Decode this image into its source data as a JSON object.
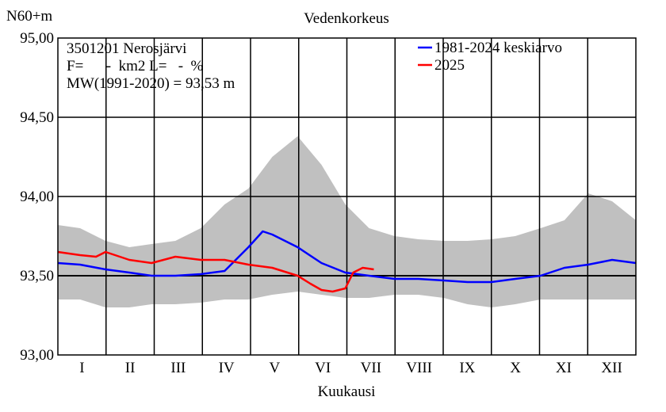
{
  "chart_data": {
    "type": "line",
    "title": "Vedenkorkeus",
    "ylabel": "N60+m",
    "xlabel": "Kuukausi",
    "ylim": [
      93.0,
      95.0
    ],
    "yticks": [
      "93,00",
      "93,50",
      "94,00",
      "94,50",
      "95,00"
    ],
    "xticks": [
      "I",
      "II",
      "III",
      "IV",
      "V",
      "VI",
      "VII",
      "VIII",
      "IX",
      "X",
      "XI",
      "XII"
    ],
    "grid": true,
    "legend_position": "top-right",
    "info_lines": [
      "3501201 Nerosjärvi",
      "F=      -  km2 L=   -  %",
      "MW(1991-2020) = 93,53 m"
    ],
    "reference_line": {
      "value": 93.5
    },
    "range_band": {
      "color": "#c0c0c0",
      "day": [
        1,
        15,
        31,
        46,
        60,
        75,
        91,
        106,
        121,
        136,
        152,
        167,
        182,
        197,
        213,
        228,
        244,
        259,
        274,
        289,
        305,
        320,
        335,
        350,
        365
      ],
      "max": [
        93.82,
        93.8,
        93.72,
        93.68,
        93.7,
        93.72,
        93.8,
        93.95,
        94.05,
        94.25,
        94.38,
        94.2,
        93.95,
        93.8,
        93.75,
        93.73,
        93.72,
        93.72,
        93.73,
        93.75,
        93.8,
        93.85,
        94.02,
        93.97,
        93.85
      ],
      "min": [
        93.35,
        93.35,
        93.3,
        93.3,
        93.32,
        93.32,
        93.33,
        93.35,
        93.35,
        93.38,
        93.4,
        93.38,
        93.36,
        93.36,
        93.38,
        93.38,
        93.36,
        93.32,
        93.3,
        93.32,
        93.35,
        93.35,
        93.35,
        93.35,
        93.35
      ]
    },
    "series": [
      {
        "name": "1981-2024 keskiarvo",
        "color": "#0000ff",
        "day": [
          1,
          15,
          31,
          46,
          60,
          75,
          91,
          106,
          121,
          130,
          136,
          152,
          167,
          182,
          197,
          213,
          228,
          244,
          259,
          274,
          289,
          305,
          320,
          335,
          350,
          365
        ],
        "values": [
          93.58,
          93.57,
          93.54,
          93.52,
          93.5,
          93.5,
          93.51,
          93.53,
          93.68,
          93.78,
          93.76,
          93.68,
          93.58,
          93.52,
          93.5,
          93.48,
          93.48,
          93.47,
          93.46,
          93.46,
          93.48,
          93.5,
          93.55,
          93.57,
          93.6,
          93.58
        ]
      },
      {
        "name": "2025",
        "color": "#ff0000",
        "day": [
          1,
          15,
          25,
          31,
          46,
          60,
          75,
          91,
          106,
          121,
          136,
          152,
          160,
          167,
          174,
          182,
          187,
          193,
          200
        ],
        "values": [
          93.65,
          93.63,
          93.62,
          93.65,
          93.6,
          93.58,
          93.62,
          93.6,
          93.6,
          93.57,
          93.55,
          93.5,
          93.45,
          93.41,
          93.4,
          93.42,
          93.52,
          93.55,
          93.54
        ]
      }
    ]
  }
}
